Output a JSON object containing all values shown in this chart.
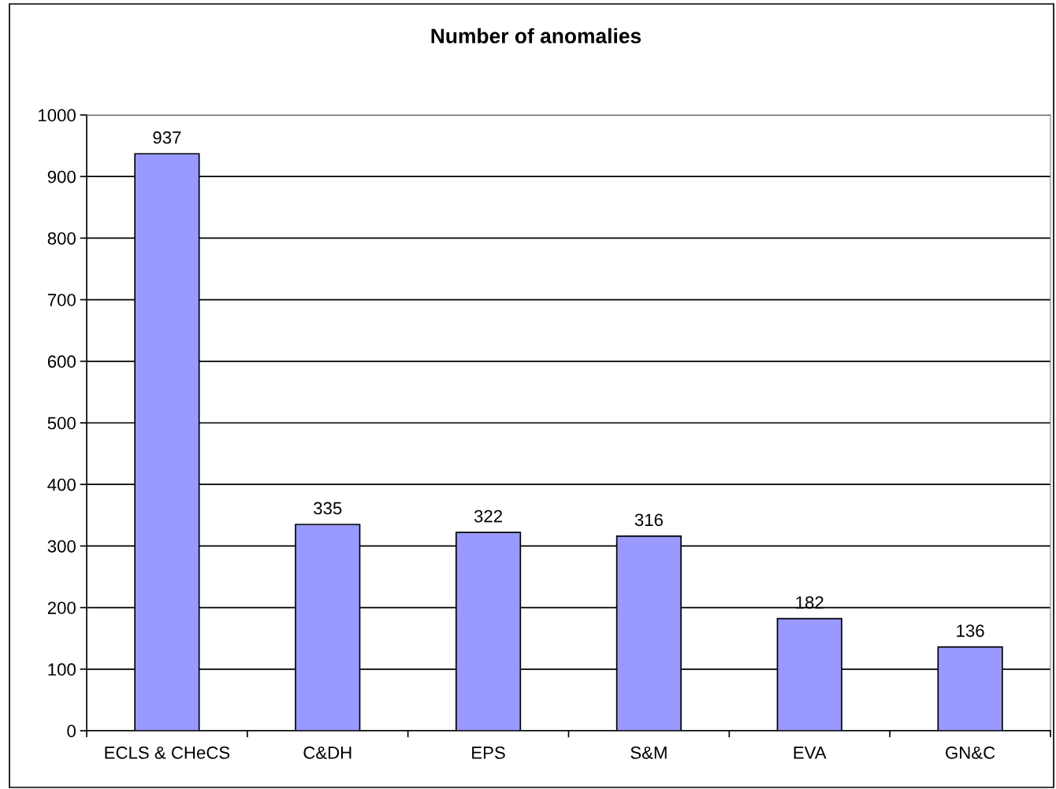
{
  "chart_data": {
    "type": "bar",
    "title": "Number of anomalies",
    "categories": [
      "ECLS & CHeCS",
      "C&DH",
      "EPS",
      "S&M",
      "EVA",
      "GN&C"
    ],
    "values": [
      937,
      335,
      322,
      316,
      182,
      136
    ],
    "color": "#9999ff",
    "ylim": [
      0,
      1000
    ],
    "yticks": [
      0,
      100,
      200,
      300,
      400,
      500,
      600,
      700,
      800,
      900,
      1000
    ],
    "grid": "y",
    "data_labels": true
  }
}
